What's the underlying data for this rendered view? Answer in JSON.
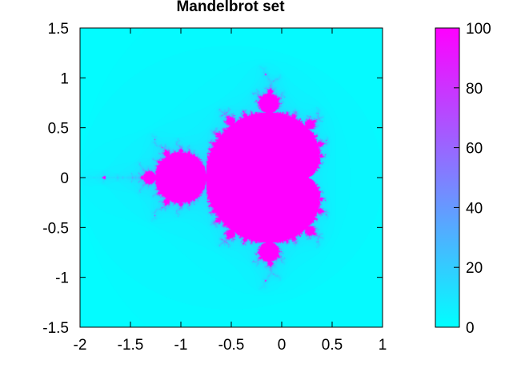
{
  "chart_data": {
    "type": "heatmap",
    "title": "Mandelbrot set",
    "xlabel": "",
    "ylabel": "",
    "xlim": [
      -2,
      1
    ],
    "ylim": [
      1.5,
      -1.5
    ],
    "x_ticks": [
      "-2",
      "-1.5",
      "-1",
      "-0.5",
      "0",
      "0.5",
      "1"
    ],
    "x_tick_values": [
      -2,
      -1.5,
      -1,
      -0.5,
      0,
      0.5,
      1
    ],
    "y_ticks": [
      "-1.5",
      "-1",
      "-0.5",
      "0",
      "0.5",
      "1",
      "1.5"
    ],
    "y_tick_values": [
      -1.5,
      -1,
      -0.5,
      0,
      0.5,
      1,
      1.5
    ],
    "max_iterations": 100,
    "colorbar": {
      "range": [
        0,
        100
      ],
      "ticks": [
        "0",
        "20",
        "40",
        "60",
        "80",
        "100"
      ],
      "tick_values": [
        0,
        20,
        40,
        60,
        80,
        100
      ],
      "color_low": "#00ffff",
      "color_high": "#ff00ff"
    },
    "grid": false,
    "legend": "none"
  }
}
